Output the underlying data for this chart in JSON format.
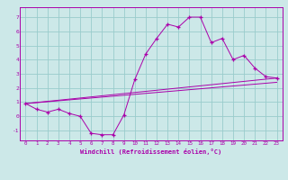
{
  "xlabel": "Windchill (Refroidissement éolien,°C)",
  "bg_color": "#cce8e8",
  "line_color": "#aa00aa",
  "grid_color": "#99cccc",
  "x_ticks": [
    0,
    1,
    2,
    3,
    4,
    5,
    6,
    7,
    8,
    9,
    10,
    11,
    12,
    13,
    14,
    15,
    16,
    17,
    18,
    19,
    20,
    21,
    22,
    23
  ],
  "y_ticks": [
    -1,
    0,
    1,
    2,
    3,
    4,
    5,
    6,
    7
  ],
  "xlim": [
    -0.5,
    23.5
  ],
  "ylim": [
    -1.7,
    7.7
  ],
  "series1_x": [
    0,
    1,
    2,
    3,
    4,
    5,
    6,
    7,
    8,
    9,
    10,
    11,
    12,
    13,
    14,
    15,
    16,
    17,
    18,
    19,
    20,
    21,
    22,
    23
  ],
  "series1_y": [
    0.9,
    0.5,
    0.3,
    0.5,
    0.2,
    0.0,
    -1.2,
    -1.3,
    -1.3,
    0.1,
    2.6,
    4.4,
    5.5,
    6.5,
    6.3,
    7.0,
    7.0,
    5.2,
    5.5,
    4.0,
    4.3,
    3.4,
    2.8,
    2.7
  ],
  "series2_x": [
    0,
    23
  ],
  "series2_y": [
    0.9,
    2.7
  ],
  "series3_x": [
    0,
    23
  ],
  "series3_y": [
    0.9,
    2.4
  ]
}
